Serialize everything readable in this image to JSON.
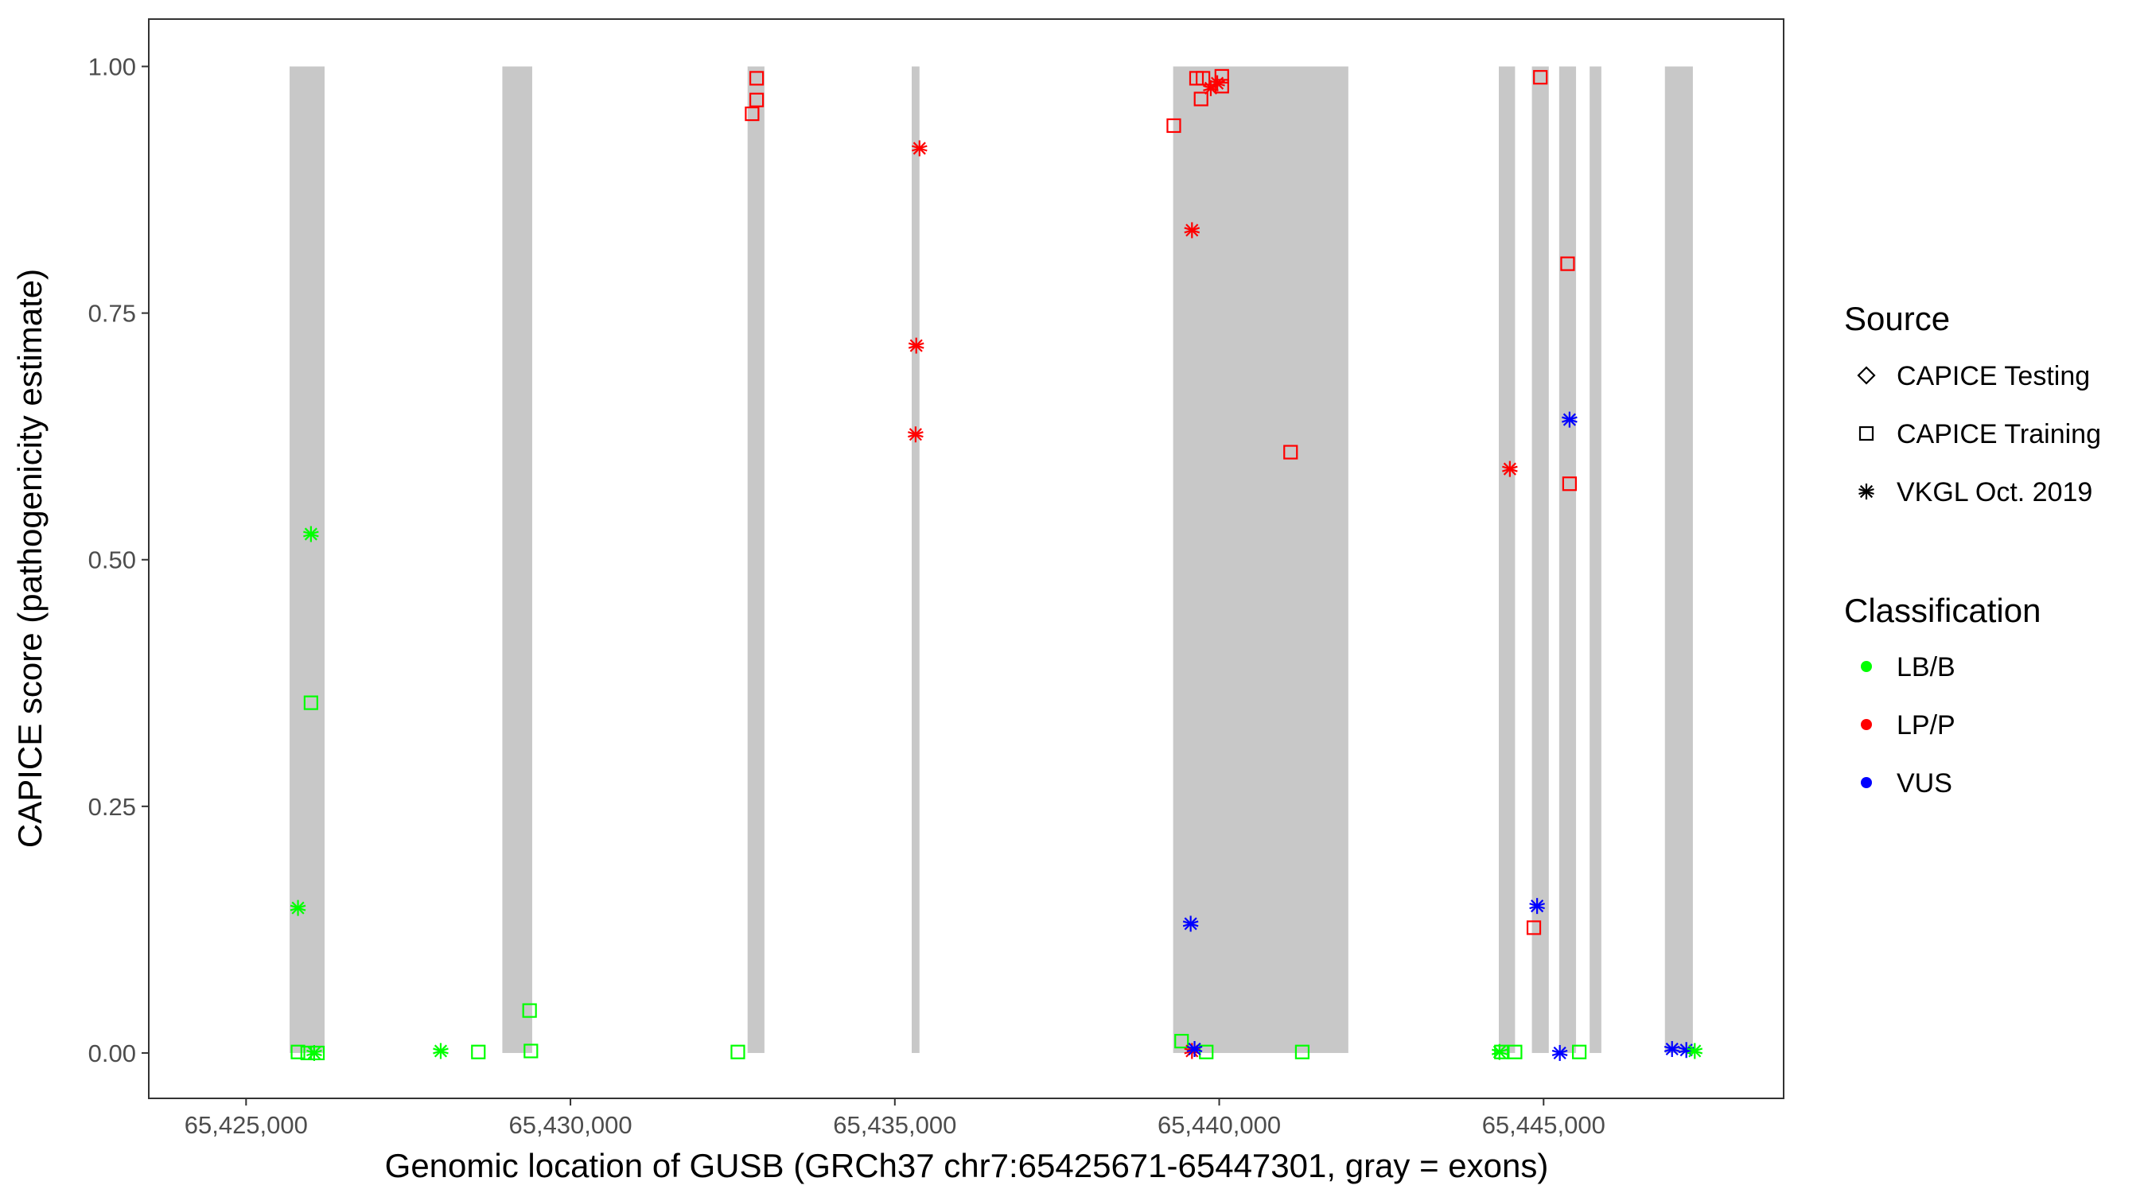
{
  "chart_data": {
    "type": "scatter",
    "xlabel": "Genomic location of GUSB (GRCh37 chr7:65425671-65447301, gray = exons)",
    "ylabel": "CAPICE score (pathogenicity estimate)",
    "xlim": [
      65423500,
      65448700
    ],
    "ylim": [
      -0.046,
      1.048
    ],
    "x_ticks": [
      65425000,
      65430000,
      65435000,
      65440000,
      65445000
    ],
    "x_tick_labels": [
      "65,425,000",
      "65,430,000",
      "65,435,000",
      "65,440,000",
      "65,445,000"
    ],
    "y_ticks": [
      0,
      0.25,
      0.5,
      0.75,
      1.0
    ],
    "y_tick_labels": [
      "0.00",
      "0.25",
      "0.50",
      "0.75",
      "1.00"
    ],
    "grid": false,
    "legend_position": "right",
    "exons": [
      [
        65425671,
        65426210
      ],
      [
        65428950,
        65429410
      ],
      [
        65432730,
        65432990
      ],
      [
        65435260,
        65435380
      ],
      [
        65439290,
        65441990
      ],
      [
        65444310,
        65444560
      ],
      [
        65444820,
        65445080
      ],
      [
        65445240,
        65445500
      ],
      [
        65445710,
        65445890
      ],
      [
        65446870,
        65447301
      ]
    ],
    "exon_color": "#c8c8c8",
    "legend_source": {
      "title": "Source",
      "items": [
        {
          "label": "CAPICE Testing",
          "shape": "diamond"
        },
        {
          "label": "CAPICE Training",
          "shape": "square"
        },
        {
          "label": "VKGL Oct. 2019",
          "shape": "asterisk"
        }
      ]
    },
    "legend_classification": {
      "title": "Classification",
      "items": [
        {
          "label": "LB/B",
          "color": "#00ff00"
        },
        {
          "label": "LP/P",
          "color": "#ff0000"
        },
        {
          "label": "VUS",
          "color": "#0000ff"
        }
      ]
    },
    "points": [
      {
        "x": 65426000,
        "y": 0.526,
        "shape": "asterisk",
        "class": "LB/B"
      },
      {
        "x": 65426000,
        "y": 0.355,
        "shape": "square",
        "class": "LB/B"
      },
      {
        "x": 65425800,
        "y": 0.147,
        "shape": "asterisk",
        "class": "LB/B"
      },
      {
        "x": 65425800,
        "y": 0.001,
        "shape": "square",
        "class": "LB/B"
      },
      {
        "x": 65425950,
        "y": 0.0,
        "shape": "square",
        "class": "LB/B"
      },
      {
        "x": 65426050,
        "y": 0.0,
        "shape": "asterisk",
        "class": "LB/B"
      },
      {
        "x": 65426100,
        "y": 0.0,
        "shape": "square",
        "class": "LB/B"
      },
      {
        "x": 65428000,
        "y": 0.002,
        "shape": "asterisk",
        "class": "LB/B"
      },
      {
        "x": 65428580,
        "y": 0.001,
        "shape": "square",
        "class": "LB/B"
      },
      {
        "x": 65429370,
        "y": 0.043,
        "shape": "square",
        "class": "LB/B"
      },
      {
        "x": 65429390,
        "y": 0.002,
        "shape": "square",
        "class": "LB/B"
      },
      {
        "x": 65432580,
        "y": 0.001,
        "shape": "square",
        "class": "LB/B"
      },
      {
        "x": 65432870,
        "y": 0.988,
        "shape": "square",
        "class": "LP/P"
      },
      {
        "x": 65432870,
        "y": 0.966,
        "shape": "square",
        "class": "LP/P"
      },
      {
        "x": 65432800,
        "y": 0.952,
        "shape": "square",
        "class": "LP/P"
      },
      {
        "x": 65435380,
        "y": 0.917,
        "shape": "asterisk",
        "class": "LP/P"
      },
      {
        "x": 65435330,
        "y": 0.717,
        "shape": "asterisk",
        "class": "LP/P"
      },
      {
        "x": 65435320,
        "y": 0.627,
        "shape": "asterisk",
        "class": "LP/P"
      },
      {
        "x": 65439300,
        "y": 0.94,
        "shape": "square",
        "class": "LP/P"
      },
      {
        "x": 65439650,
        "y": 0.988,
        "shape": "square",
        "class": "LP/P"
      },
      {
        "x": 65439750,
        "y": 0.988,
        "shape": "square",
        "class": "LP/P"
      },
      {
        "x": 65439720,
        "y": 0.967,
        "shape": "square",
        "class": "LP/P"
      },
      {
        "x": 65440040,
        "y": 0.99,
        "shape": "square",
        "class": "LP/P"
      },
      {
        "x": 65440040,
        "y": 0.98,
        "shape": "square",
        "class": "LP/P"
      },
      {
        "x": 65439870,
        "y": 0.978,
        "shape": "asterisk",
        "class": "LP/P"
      },
      {
        "x": 65439970,
        "y": 0.983,
        "shape": "asterisk",
        "class": "LP/P"
      },
      {
        "x": 65439580,
        "y": 0.834,
        "shape": "asterisk",
        "class": "LP/P"
      },
      {
        "x": 65441100,
        "y": 0.609,
        "shape": "square",
        "class": "LP/P"
      },
      {
        "x": 65439560,
        "y": 0.131,
        "shape": "asterisk",
        "class": "VUS"
      },
      {
        "x": 65439420,
        "y": 0.012,
        "shape": "square",
        "class": "LB/B"
      },
      {
        "x": 65439800,
        "y": 0.001,
        "shape": "square",
        "class": "LB/B"
      },
      {
        "x": 65439580,
        "y": 0.002,
        "shape": "asterisk",
        "class": "LP/P"
      },
      {
        "x": 65439620,
        "y": 0.004,
        "shape": "asterisk",
        "class": "VUS"
      },
      {
        "x": 65441280,
        "y": 0.001,
        "shape": "square",
        "class": "LB/B"
      },
      {
        "x": 65444480,
        "y": 0.592,
        "shape": "asterisk",
        "class": "LP/P"
      },
      {
        "x": 65444320,
        "y": 0.001,
        "shape": "asterisk",
        "class": "LB/B"
      },
      {
        "x": 65444350,
        "y": 0.001,
        "shape": "square",
        "class": "LB/B"
      },
      {
        "x": 65444560,
        "y": 0.001,
        "shape": "square",
        "class": "LB/B"
      },
      {
        "x": 65444950,
        "y": 0.989,
        "shape": "square",
        "class": "LP/P"
      },
      {
        "x": 65444850,
        "y": 0.127,
        "shape": "square",
        "class": "LP/P"
      },
      {
        "x": 65444900,
        "y": 0.149,
        "shape": "asterisk",
        "class": "VUS"
      },
      {
        "x": 65445370,
        "y": 0.8,
        "shape": "square",
        "class": "LP/P"
      },
      {
        "x": 65445400,
        "y": 0.642,
        "shape": "asterisk",
        "class": "VUS"
      },
      {
        "x": 65445400,
        "y": 0.577,
        "shape": "square",
        "class": "LP/P"
      },
      {
        "x": 65445250,
        "y": 0.0,
        "shape": "asterisk",
        "class": "VUS"
      },
      {
        "x": 65445550,
        "y": 0.001,
        "shape": "square",
        "class": "LB/B"
      },
      {
        "x": 65446980,
        "y": 0.004,
        "shape": "asterisk",
        "class": "VUS"
      },
      {
        "x": 65447200,
        "y": 0.003,
        "shape": "asterisk",
        "class": "VUS"
      },
      {
        "x": 65447330,
        "y": 0.002,
        "shape": "asterisk",
        "class": "LB/B"
      }
    ]
  }
}
